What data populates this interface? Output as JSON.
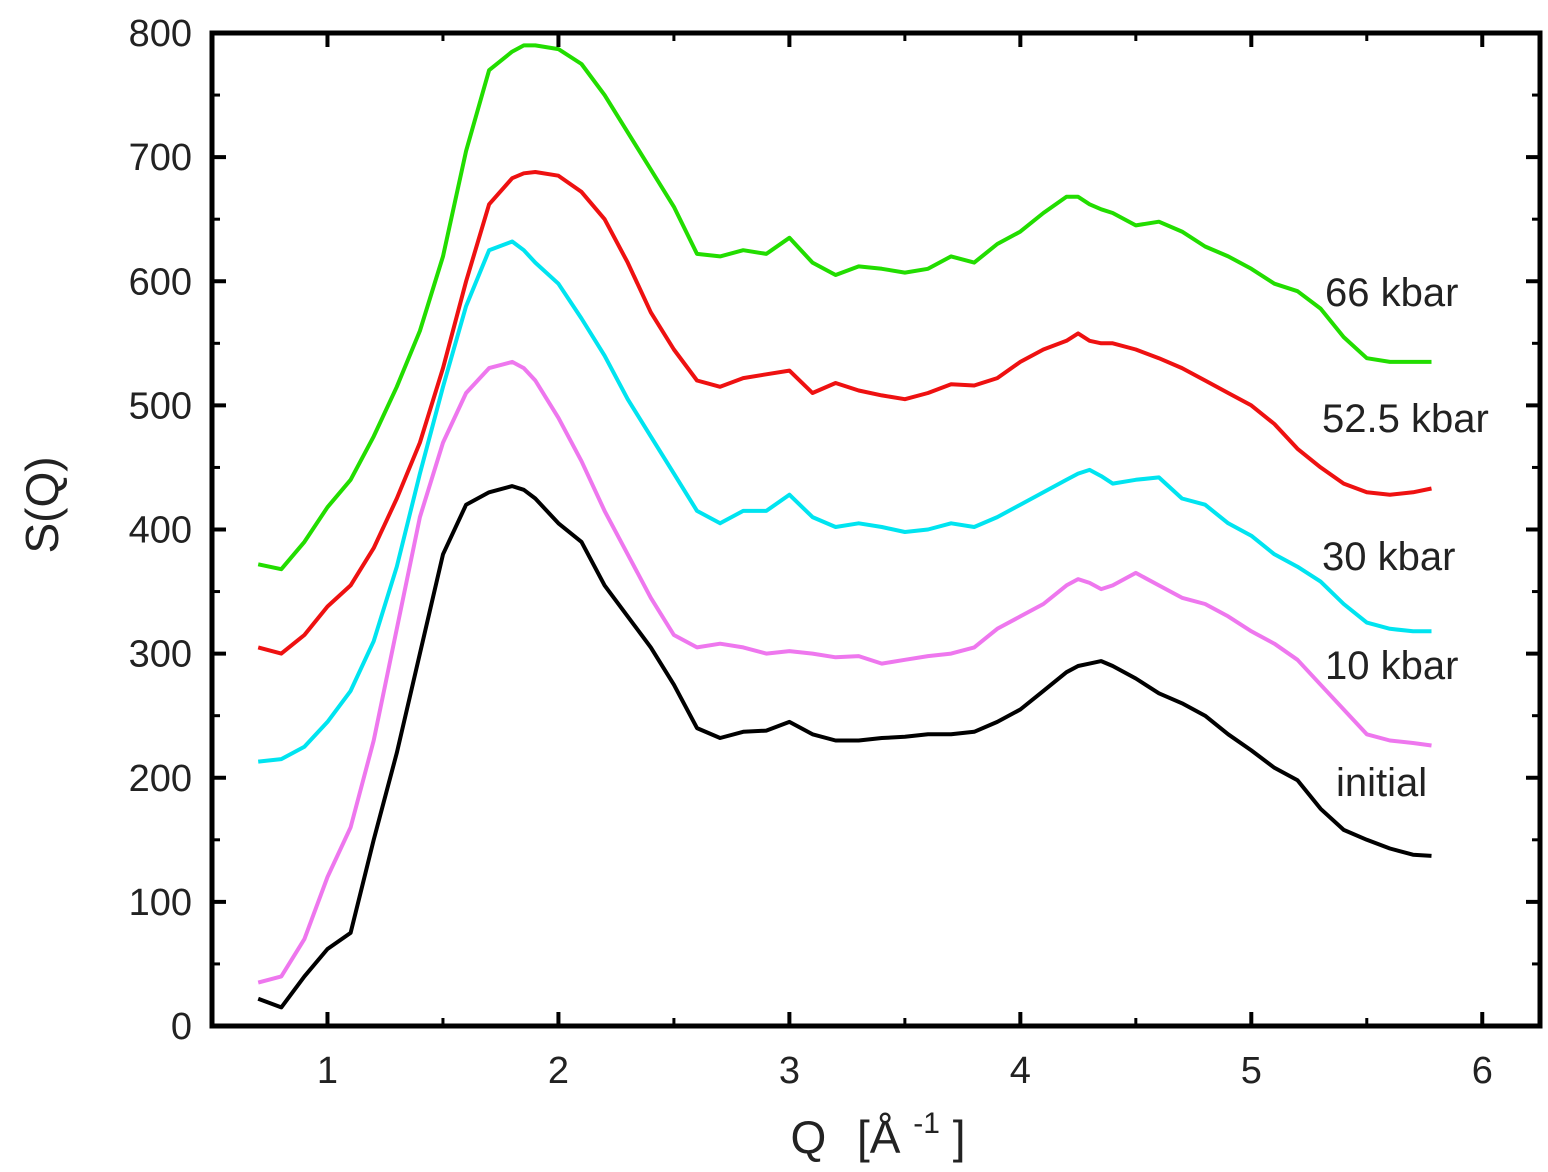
{
  "chart_data": {
    "type": "line",
    "xlabel": "Q",
    "xunit_prefix": "[Å",
    "xunit_exp": "-1",
    "xunit_suffix": "]",
    "ylabel": "S(Q)",
    "xlim": [
      0.5,
      6.25
    ],
    "ylim": [
      0,
      800
    ],
    "x_ticks": [
      1,
      2,
      3,
      4,
      5,
      6
    ],
    "y_ticks": [
      0,
      100,
      200,
      300,
      400,
      500,
      600,
      700,
      800
    ],
    "grid": false,
    "legend": "inline labels at right end of each curve",
    "x": [
      0.7,
      0.8,
      0.9,
      1.0,
      1.1,
      1.2,
      1.3,
      1.4,
      1.5,
      1.6,
      1.7,
      1.8,
      1.85,
      1.9,
      2.0,
      2.1,
      2.2,
      2.3,
      2.4,
      2.5,
      2.6,
      2.7,
      2.8,
      2.9,
      3.0,
      3.1,
      3.2,
      3.3,
      3.4,
      3.5,
      3.6,
      3.7,
      3.8,
      3.9,
      4.0,
      4.1,
      4.2,
      4.25,
      4.3,
      4.35,
      4.4,
      4.5,
      4.6,
      4.7,
      4.8,
      4.9,
      5.0,
      5.1,
      5.2,
      5.3,
      5.4,
      5.5,
      5.6,
      5.7,
      5.78
    ],
    "series": [
      {
        "name": "66 kbar",
        "color": "#22dd00",
        "values": [
          372,
          368,
          390,
          418,
          440,
          475,
          515,
          560,
          620,
          705,
          770,
          785,
          790,
          790,
          787,
          775,
          750,
          720,
          690,
          660,
          622,
          620,
          625,
          622,
          635,
          615,
          605,
          612,
          610,
          607,
          610,
          620,
          615,
          630,
          640,
          655,
          668,
          668,
          662,
          658,
          655,
          645,
          648,
          640,
          628,
          620,
          610,
          598,
          592,
          578,
          555,
          538,
          535,
          535,
          535
        ]
      },
      {
        "name": "52.5 kbar",
        "color": "#ee1111",
        "values": [
          305,
          300,
          315,
          338,
          355,
          385,
          425,
          470,
          530,
          600,
          662,
          683,
          687,
          688,
          685,
          672,
          650,
          615,
          575,
          545,
          520,
          515,
          522,
          525,
          528,
          510,
          518,
          512,
          508,
          505,
          510,
          517,
          516,
          522,
          535,
          545,
          552,
          558,
          552,
          550,
          550,
          545,
          538,
          530,
          520,
          510,
          500,
          485,
          465,
          450,
          437,
          430,
          428,
          430,
          433
        ]
      },
      {
        "name": "30 kbar",
        "color": "#00e4f0",
        "values": [
          213,
          215,
          225,
          245,
          270,
          310,
          370,
          445,
          515,
          580,
          625,
          632,
          625,
          615,
          598,
          570,
          540,
          505,
          475,
          445,
          415,
          405,
          415,
          415,
          428,
          410,
          402,
          405,
          402,
          398,
          400,
          405,
          402,
          410,
          420,
          430,
          440,
          445,
          448,
          443,
          437,
          440,
          442,
          425,
          420,
          405,
          395,
          380,
          370,
          358,
          340,
          325,
          320,
          318,
          318
        ]
      },
      {
        "name": "10 kbar",
        "color": "#ee77ee",
        "values": [
          35,
          40,
          70,
          120,
          160,
          230,
          320,
          410,
          470,
          510,
          530,
          535,
          530,
          520,
          490,
          455,
          415,
          380,
          345,
          315,
          305,
          308,
          305,
          300,
          302,
          300,
          297,
          298,
          292,
          295,
          298,
          300,
          305,
          320,
          330,
          340,
          355,
          360,
          357,
          352,
          355,
          365,
          355,
          345,
          340,
          330,
          318,
          308,
          295,
          275,
          255,
          235,
          230,
          228,
          226
        ]
      },
      {
        "name": "initial",
        "color": "#000000",
        "values": [
          22,
          15,
          40,
          62,
          75,
          150,
          220,
          300,
          380,
          420,
          430,
          435,
          432,
          425,
          405,
          390,
          355,
          330,
          305,
          275,
          240,
          232,
          237,
          238,
          245,
          235,
          230,
          230,
          232,
          233,
          235,
          235,
          237,
          245,
          255,
          270,
          285,
          290,
          292,
          294,
          290,
          280,
          268,
          260,
          250,
          235,
          222,
          208,
          198,
          175,
          158,
          150,
          143,
          138,
          137
        ]
      }
    ]
  }
}
